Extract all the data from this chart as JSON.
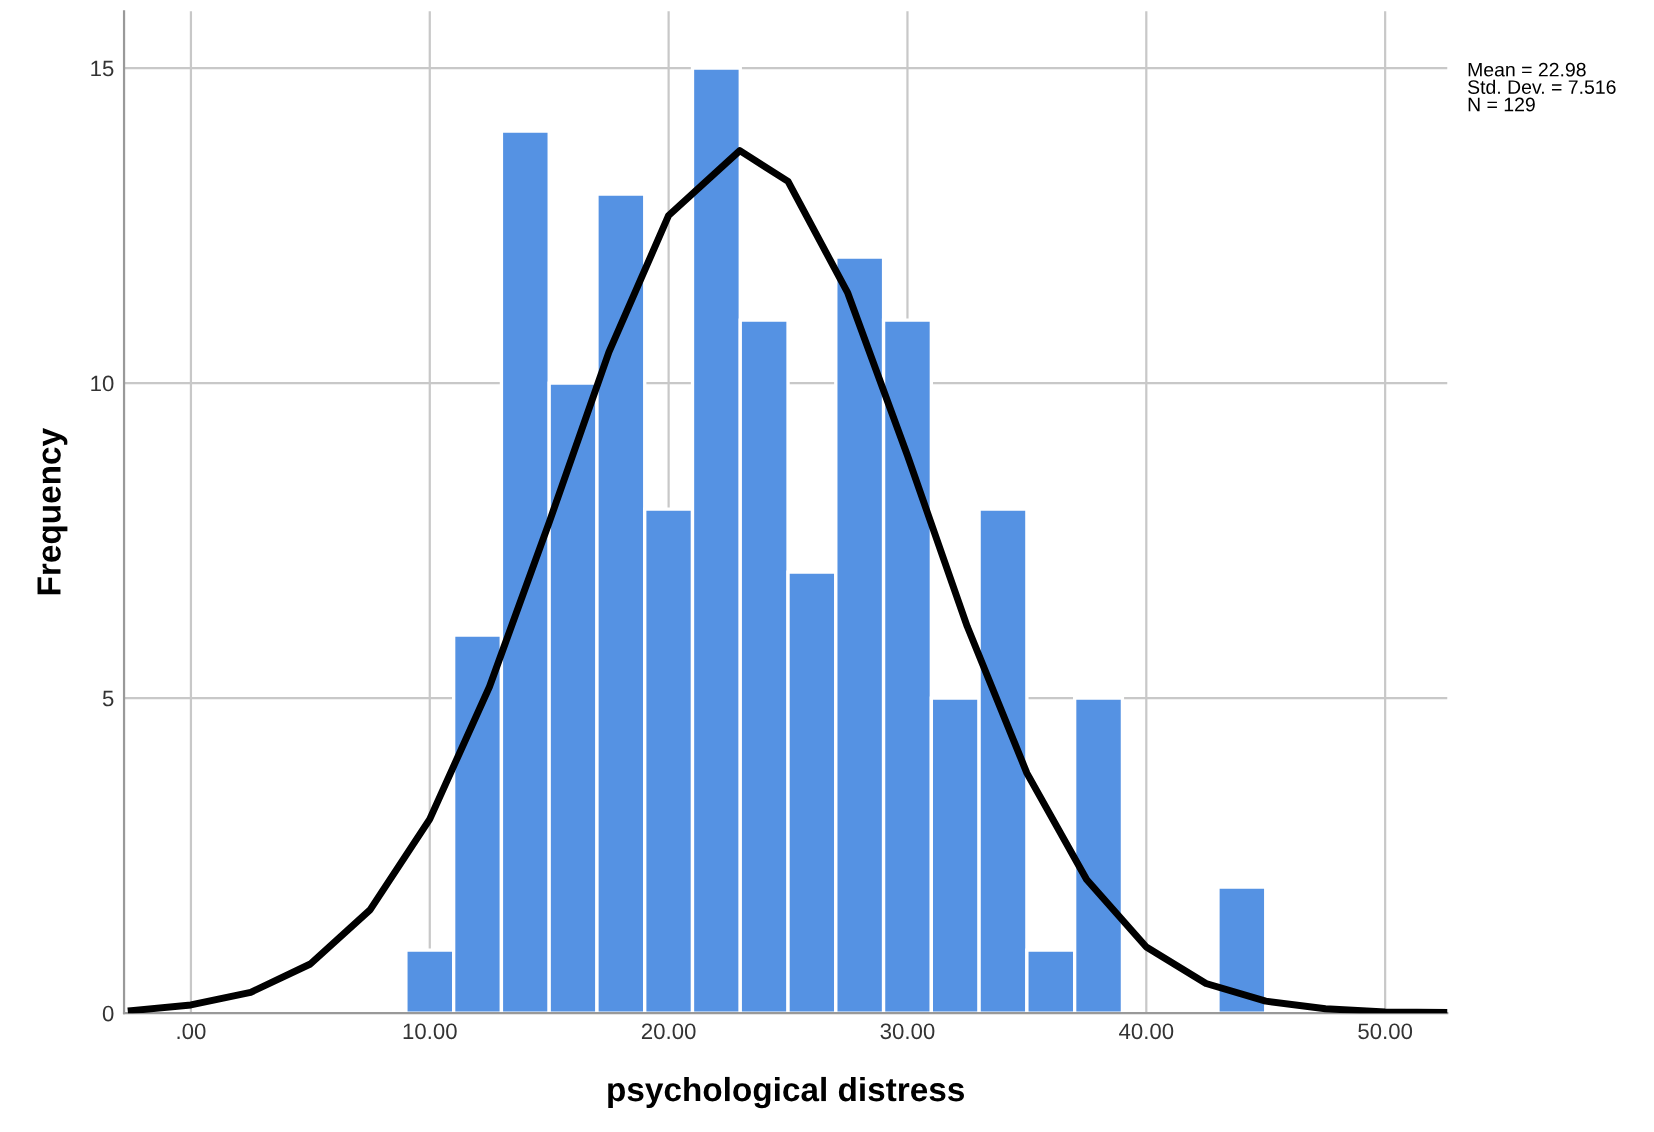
{
  "chart_data": {
    "type": "histogram",
    "xlabel": "psychological distress",
    "ylabel": "Frequency",
    "bins": [
      9,
      11,
      13,
      15,
      17,
      19,
      21,
      23,
      25,
      27,
      29,
      31,
      33,
      35,
      37,
      39,
      41,
      43,
      45
    ],
    "values": [
      1,
      6,
      14,
      10,
      13,
      8,
      15,
      11,
      7,
      12,
      11,
      5,
      8,
      1,
      5,
      0,
      0,
      2
    ],
    "color": "#5592e3",
    "series": [
      {
        "type": "line",
        "color": "#000000",
        "x": [
          -2.5,
          0,
          2.5,
          5,
          7.5,
          10,
          12.5,
          15,
          17.5,
          20,
          22.98,
          25,
          27.5,
          30,
          32.5,
          35,
          37.5,
          40,
          42.5,
          45,
          47.5,
          50,
          52.5
        ],
        "values": [
          0.04,
          0.13,
          0.33,
          0.78,
          1.64,
          3.08,
          5.18,
          7.79,
          10.49,
          12.66,
          13.69,
          13.2,
          11.43,
          8.85,
          6.14,
          3.81,
          2.12,
          1.05,
          0.47,
          0.19,
          0.07,
          0.02,
          0.01
        ]
      }
    ],
    "xlim": [
      -2.8,
      52.6
    ],
    "ylim": [
      0,
      15.9
    ],
    "xticks": [
      {
        "value": 0,
        "label": ".00"
      },
      {
        "value": 10,
        "label": "10.00"
      },
      {
        "value": 20,
        "label": "20.00"
      },
      {
        "value": 30,
        "label": "30.00"
      },
      {
        "value": 40,
        "label": "40.00"
      },
      {
        "value": 50,
        "label": "50.00"
      }
    ],
    "yticks": [
      0,
      5,
      10,
      15
    ],
    "grid": true,
    "annotations": [
      "Mean = 22.98\nStd. Dev. = 7.516\nN = 129"
    ]
  }
}
